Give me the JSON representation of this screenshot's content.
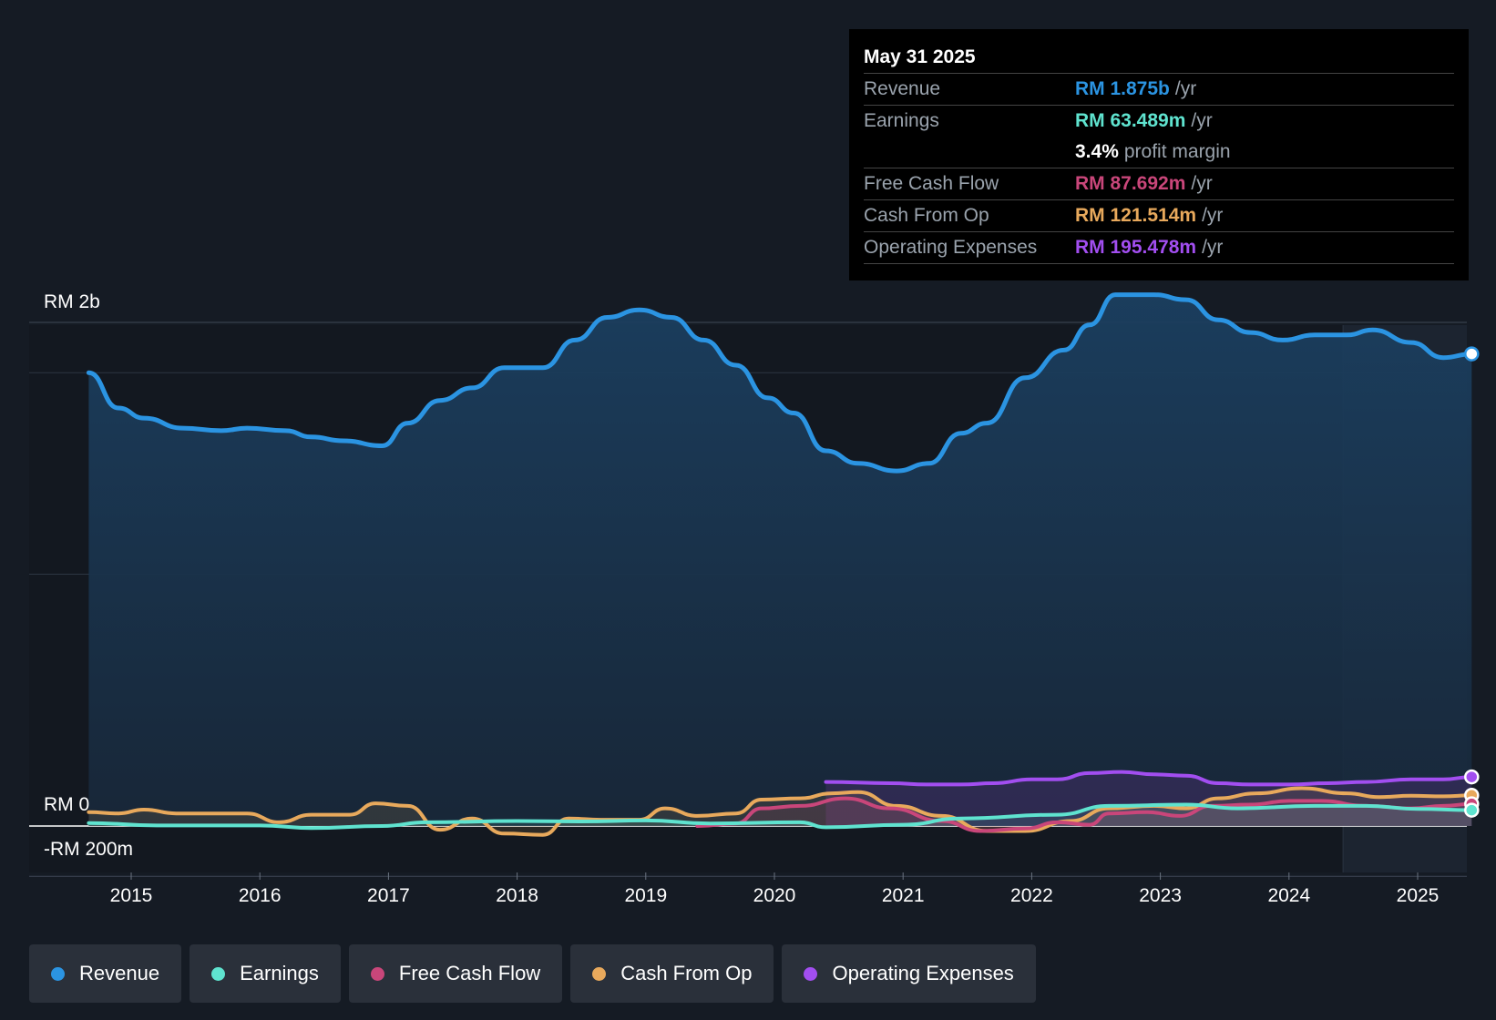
{
  "colors": {
    "revenue": "#2b94e2",
    "earnings": "#5fe3cf",
    "fcf": "#c9467a",
    "cfo": "#e8a95c",
    "opex": "#a24ef0"
  },
  "tooltip": {
    "date": "May 31 2025",
    "rows": [
      {
        "label": "Revenue",
        "value": "RM 1.875b",
        "unit": "/yr"
      },
      {
        "label": "Earnings",
        "value": "RM 63.489m",
        "unit": "/yr"
      },
      {
        "label": "",
        "value": "3.4%",
        "unit": "profit margin"
      },
      {
        "label": "Free Cash Flow",
        "value": "RM 87.692m",
        "unit": "/yr"
      },
      {
        "label": "Cash From Op",
        "value": "RM 121.514m",
        "unit": "/yr"
      },
      {
        "label": "Operating Expenses",
        "value": "RM 195.478m",
        "unit": "/yr"
      }
    ]
  },
  "legend": [
    {
      "key": "revenue",
      "label": "Revenue"
    },
    {
      "key": "earnings",
      "label": "Earnings"
    },
    {
      "key": "fcf",
      "label": "Free Cash Flow"
    },
    {
      "key": "cfo",
      "label": "Cash From Op"
    },
    {
      "key": "opex",
      "label": "Operating Expenses"
    }
  ],
  "chart_data": {
    "type": "line",
    "y_unit": "RM millions",
    "ylim": [
      -200,
      2000
    ],
    "y_tick_labels": [
      {
        "value": 2000,
        "label": "RM 2b"
      },
      {
        "value": 0,
        "label": "RM 0"
      },
      {
        "value": -200,
        "label": "-RM 200m"
      }
    ],
    "xlim": [
      2014.67,
      2025.42
    ],
    "x_ticks": [
      "2015",
      "2016",
      "2017",
      "2018",
      "2019",
      "2020",
      "2021",
      "2022",
      "2023",
      "2024",
      "2025"
    ],
    "forecast_start": 2024.42,
    "series": [
      {
        "name": "Revenue",
        "key": "revenue",
        "x": [
          2014.67,
          2014.9,
          2015.1,
          2015.4,
          2015.7,
          2015.9,
          2016.2,
          2016.4,
          2016.65,
          2016.95,
          2017.15,
          2017.4,
          2017.65,
          2017.9,
          2018.2,
          2018.45,
          2018.7,
          2018.95,
          2019.2,
          2019.45,
          2019.7,
          2019.95,
          2020.15,
          2020.4,
          2020.65,
          2020.95,
          2021.2,
          2021.45,
          2021.65,
          2021.95,
          2022.25,
          2022.45,
          2022.65,
          2022.95,
          2023.2,
          2023.45,
          2023.7,
          2023.95,
          2024.2,
          2024.45,
          2024.65,
          2024.95,
          2025.2,
          2025.42
        ],
        "values": [
          1800,
          1660,
          1620,
          1580,
          1570,
          1580,
          1570,
          1545,
          1530,
          1510,
          1600,
          1690,
          1740,
          1820,
          1820,
          1930,
          2020,
          2050,
          2020,
          1930,
          1830,
          1700,
          1640,
          1490,
          1440,
          1410,
          1440,
          1560,
          1600,
          1780,
          1890,
          1990,
          2110,
          2110,
          2090,
          2010,
          1960,
          1930,
          1950,
          1950,
          1970,
          1920,
          1860,
          1875
        ]
      },
      {
        "name": "Earnings",
        "key": "earnings",
        "x": [
          2014.67,
          2015.2,
          2016.0,
          2016.4,
          2016.95,
          2017.3,
          2018.0,
          2018.5,
          2019.0,
          2019.5,
          2020.2,
          2020.4,
          2021.0,
          2021.45,
          2022.2,
          2022.6,
          2023.2,
          2023.6,
          2024.2,
          2024.6,
          2025.0,
          2025.42
        ],
        "values": [
          12,
          2,
          2,
          -8,
          0,
          15,
          20,
          18,
          22,
          10,
          15,
          -5,
          5,
          30,
          45,
          80,
          85,
          70,
          80,
          80,
          68,
          63
        ]
      },
      {
        "name": "Free Cash Flow",
        "key": "fcf",
        "x": [
          2019.4,
          2019.7,
          2019.9,
          2020.2,
          2020.55,
          2020.9,
          2021.3,
          2021.6,
          2021.95,
          2022.2,
          2022.45,
          2022.6,
          2022.9,
          2023.15,
          2023.4,
          2023.7,
          2024.0,
          2024.25,
          2024.6,
          2024.95,
          2025.2,
          2025.42
        ],
        "values": [
          0,
          10,
          70,
          80,
          110,
          70,
          20,
          -20,
          -10,
          15,
          5,
          50,
          55,
          40,
          80,
          85,
          100,
          100,
          80,
          70,
          80,
          88
        ]
      },
      {
        "name": "Cash From Op",
        "key": "cfo",
        "x": [
          2014.67,
          2014.9,
          2015.1,
          2015.35,
          2015.65,
          2015.9,
          2016.15,
          2016.4,
          2016.7,
          2016.9,
          2017.15,
          2017.4,
          2017.65,
          2017.9,
          2018.2,
          2018.4,
          2018.65,
          2018.95,
          2019.15,
          2019.4,
          2019.7,
          2019.9,
          2020.2,
          2020.45,
          2020.65,
          2020.95,
          2021.3,
          2021.65,
          2021.95,
          2022.3,
          2022.6,
          2022.95,
          2023.2,
          2023.45,
          2023.75,
          2024.1,
          2024.45,
          2024.7,
          2024.95,
          2025.2,
          2025.42
        ],
        "values": [
          55,
          50,
          65,
          50,
          50,
          50,
          15,
          45,
          45,
          90,
          80,
          -15,
          30,
          -30,
          -35,
          30,
          25,
          25,
          70,
          40,
          50,
          105,
          110,
          130,
          135,
          80,
          40,
          -20,
          -20,
          20,
          70,
          80,
          70,
          110,
          130,
          150,
          130,
          115,
          120,
          118,
          122
        ]
      },
      {
        "name": "Operating Expenses",
        "key": "opex",
        "x": [
          2020.4,
          2020.9,
          2021.2,
          2021.45,
          2021.7,
          2022.0,
          2022.2,
          2022.45,
          2022.7,
          2022.95,
          2023.2,
          2023.45,
          2023.7,
          2024.0,
          2024.3,
          2024.6,
          2024.95,
          2025.2,
          2025.42
        ],
        "values": [
          175,
          170,
          165,
          165,
          170,
          185,
          185,
          210,
          215,
          205,
          200,
          170,
          165,
          165,
          170,
          175,
          185,
          185,
          195
        ]
      }
    ]
  }
}
